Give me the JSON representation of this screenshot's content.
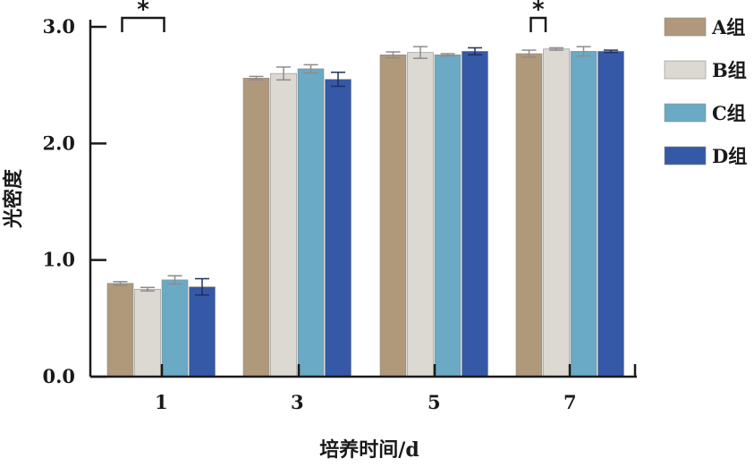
{
  "chart_data": {
    "type": "bar",
    "title": "",
    "xlabel": "培养时间/d",
    "ylabel": "光密度",
    "categories": [
      "1",
      "3",
      "5",
      "7"
    ],
    "ylim": [
      0,
      3.0
    ],
    "yticks": [
      "0.0",
      "1.0",
      "2.0",
      "3.0"
    ],
    "ytick_values": [
      0,
      1.0,
      2.0,
      3.0
    ],
    "grid": false,
    "legend_position": "right",
    "series": [
      {
        "name": "A组",
        "color": "#b0987a",
        "values": [
          0.8,
          2.56,
          2.76,
          2.77
        ],
        "errors": [
          0.015,
          0.015,
          0.025,
          0.03
        ]
      },
      {
        "name": "B组",
        "color": "#dcd9d2",
        "values": [
          0.75,
          2.6,
          2.78,
          2.81
        ],
        "errors": [
          0.015,
          0.055,
          0.05,
          0.01
        ]
      },
      {
        "name": "C组",
        "color": "#6aaac4",
        "values": [
          0.83,
          2.64,
          2.76,
          2.79
        ],
        "errors": [
          0.035,
          0.035,
          0.01,
          0.04
        ]
      },
      {
        "name": "D组",
        "color": "#3559a6",
        "values": [
          0.77,
          2.55,
          2.79,
          2.79
        ],
        "errors": [
          0.07,
          0.06,
          0.03,
          0.01
        ]
      }
    ],
    "annotations": [
      {
        "label": "*",
        "category_index": 0,
        "from_series": 0,
        "to_series": 2
      },
      {
        "label": "*",
        "category_index": 3,
        "from_series": 0,
        "to_series": 1
      }
    ]
  }
}
